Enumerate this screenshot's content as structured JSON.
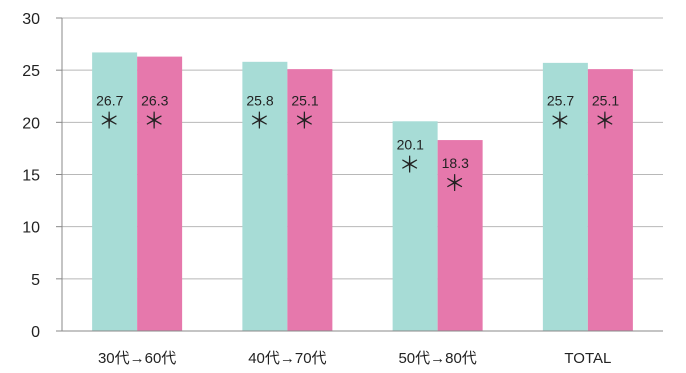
{
  "chart_data": {
    "type": "bar",
    "categories": [
      "30代→60代",
      "40代→70代",
      "50代→80代",
      "TOTAL"
    ],
    "series": [
      {
        "values": [
          26.7,
          25.8,
          20.1,
          25.7
        ],
        "color": "#a7dcd6"
      },
      {
        "values": [
          26.3,
          25.1,
          18.3,
          25.1
        ],
        "color": "#e678ac"
      }
    ],
    "data_labels": [
      [
        "26.7",
        "25.8",
        "20.1",
        "25.7"
      ],
      [
        "26.3",
        "25.1",
        "18.3",
        "25.1"
      ]
    ],
    "significance_mark": "＊",
    "ylim": [
      0,
      30
    ],
    "yticks": [
      "0",
      "5",
      "10",
      "15",
      "20",
      "25",
      "30"
    ],
    "grid": true
  }
}
